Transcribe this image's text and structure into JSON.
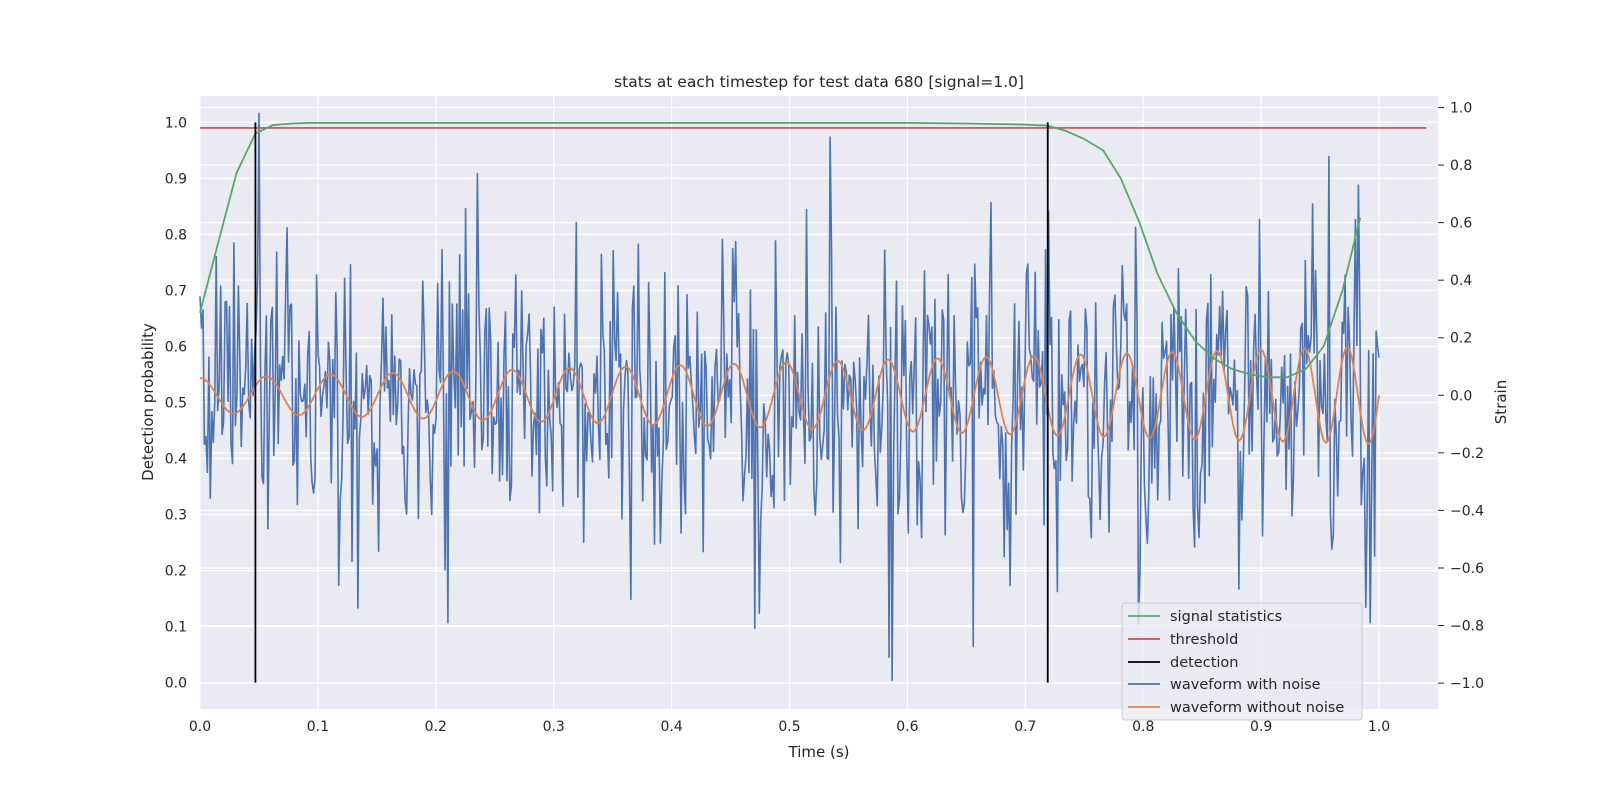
{
  "chart_data": {
    "type": "line",
    "title": "stats at each timestep for test data 680 [signal=1.0]",
    "xlabel": "Time (s)",
    "ylabel": "Detection probability",
    "ylabel_right": "Strain",
    "xlim": [
      0.0,
      1.05
    ],
    "ylim": [
      -0.047,
      1.047
    ],
    "ylim_right": [
      -1.09,
      1.04
    ],
    "grid": true,
    "legend_position": "lower right",
    "x_ticks": [
      "0.0",
      "0.1",
      "0.2",
      "0.3",
      "0.4",
      "0.5",
      "0.6",
      "0.7",
      "0.8",
      "0.9",
      "1.0"
    ],
    "y_ticks": [
      "0.0",
      "0.1",
      "0.2",
      "0.3",
      "0.4",
      "0.5",
      "0.6",
      "0.7",
      "0.8",
      "0.9",
      "1.0"
    ],
    "y_ticks_right": [
      "−1.0",
      "−0.8",
      "−0.6",
      "−0.4",
      "−0.2",
      "0.0",
      "0.2",
      "0.4",
      "0.6",
      "0.8",
      "1.0"
    ],
    "signal_statistics": {
      "name": "signal statistics",
      "color": "#55a868",
      "x": [
        0.0,
        0.016,
        0.031,
        0.047,
        0.062,
        0.078,
        0.094,
        0.109,
        0.125,
        0.2,
        0.3,
        0.4,
        0.5,
        0.6,
        0.65,
        0.7,
        0.719,
        0.734,
        0.75,
        0.766,
        0.781,
        0.797,
        0.812,
        0.828,
        0.844,
        0.859,
        0.875,
        0.891,
        0.906,
        0.922,
        0.938,
        0.953,
        0.969,
        0.984
      ],
      "y": [
        0.66,
        0.79,
        0.91,
        0.98,
        0.995,
        0.998,
        0.999,
        0.999,
        0.999,
        0.999,
        0.999,
        0.999,
        0.999,
        0.999,
        0.998,
        0.996,
        0.994,
        0.985,
        0.97,
        0.95,
        0.9,
        0.82,
        0.73,
        0.66,
        0.61,
        0.58,
        0.56,
        0.55,
        0.545,
        0.545,
        0.56,
        0.6,
        0.7,
        0.83
      ]
    },
    "threshold": {
      "name": "threshold",
      "color": "#c44e52",
      "x": [
        0.0,
        1.04
      ],
      "y": [
        0.99,
        0.99
      ]
    },
    "detection": {
      "name": "detection",
      "color": "#000000",
      "x": [
        0.047,
        0.719
      ],
      "y_range": [
        0.0,
        1.0
      ]
    },
    "waveform_with_noise": {
      "name": "waveform with noise",
      "color": "#4c72b0",
      "samples": 800,
      "x_range": [
        0.0,
        1.0
      ],
      "noise_std": 0.25,
      "notable_points": [
        {
          "x": 0.05,
          "strain": 0.98
        },
        {
          "x": 0.118,
          "strain": -0.66
        },
        {
          "x": 0.21,
          "strain": -0.79
        },
        {
          "x": 0.587,
          "strain": -0.99
        },
        {
          "x": 0.584,
          "strain": -0.91
        },
        {
          "x": 0.47,
          "strain": -0.81
        },
        {
          "x": 0.958,
          "strain": 0.83
        },
        {
          "x": 0.982,
          "strain": 0.73
        },
        {
          "x": 0.993,
          "strain": -0.79
        },
        {
          "x": 0.235,
          "strain": 0.77
        },
        {
          "x": 0.72,
          "strain": 0.64
        }
      ]
    },
    "waveform_without_noise": {
      "name": "waveform without noise",
      "color": "#dd8452",
      "x_range": [
        0.0,
        1.0
      ],
      "amplitude_start": 0.06,
      "amplitude_end": 0.17,
      "frequency_start_hz": 17.5,
      "frequency_end_hz": 28.0,
      "start_strain": 0.05,
      "end_strain": 0.0
    },
    "legend": [
      {
        "label": "signal statistics",
        "color": "#55a868"
      },
      {
        "label": "threshold",
        "color": "#c44e52"
      },
      {
        "label": "detection",
        "color": "#000000"
      },
      {
        "label": "waveform with noise",
        "color": "#4c72b0"
      },
      {
        "label": "waveform without noise",
        "color": "#dd8452"
      }
    ],
    "colors": {
      "plot_background": "#eaeaf2",
      "grid": "#ffffff",
      "text": "#262626"
    }
  }
}
